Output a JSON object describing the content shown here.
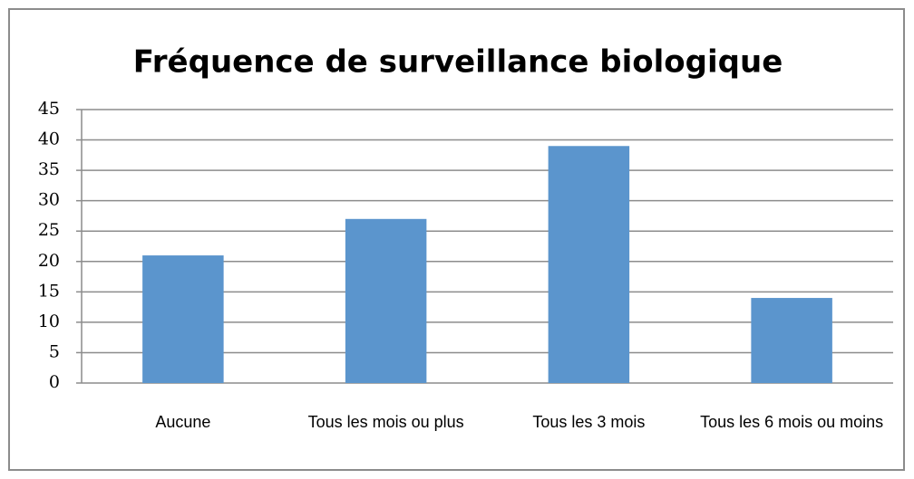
{
  "chart_data": {
    "type": "bar",
    "title": "Fréquence de surveillance biologique",
    "categories": [
      "Aucune",
      "Tous les mois ou plus",
      "Tous les 3 mois",
      "Tous les 6 mois ou moins"
    ],
    "values": [
      21,
      27,
      39,
      14
    ],
    "color": "#5b95cd",
    "ylim": [
      0,
      45
    ],
    "yticks": [
      0,
      5,
      10,
      15,
      20,
      25,
      30,
      35,
      40,
      45
    ],
    "grid": true
  }
}
